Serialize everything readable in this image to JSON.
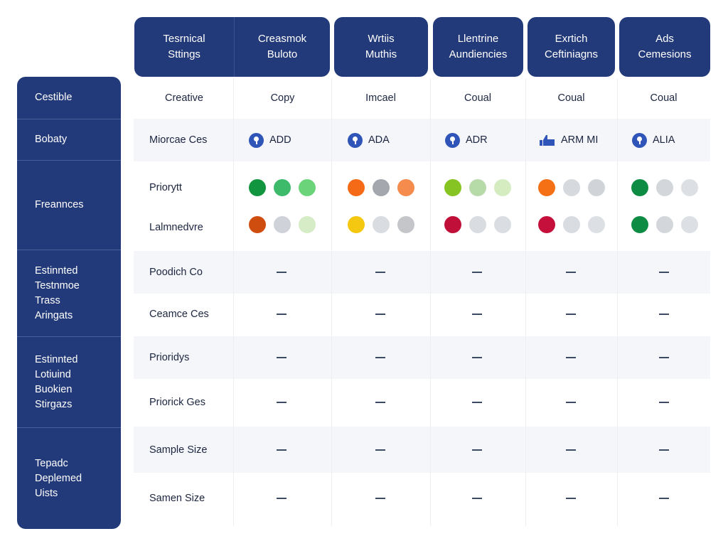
{
  "header": {
    "columns": [
      {
        "label_line1": "Tesrnical",
        "label_line2": "Sttings"
      },
      {
        "label_line1": "Creasmok",
        "label_line2": "Buloto"
      },
      {
        "label_line1": "Wrtiis",
        "label_line2": "Muthis"
      },
      {
        "label_line1": "Llentrine",
        "label_line2": "Aundiencies"
      },
      {
        "label_line1": "Exrtich",
        "label_line2": "Ceftiniagns"
      },
      {
        "label_line1": "Ads",
        "label_line2": "Cemesions"
      }
    ]
  },
  "sidebar": {
    "sections": [
      {
        "lines": [
          "Cestible"
        ]
      },
      {
        "lines": [
          "Bobaty"
        ]
      },
      {
        "lines": [
          "Freannces"
        ]
      },
      {
        "lines": [
          "Estinnted",
          "Testnmoe",
          "Trass",
          "Aringats"
        ]
      },
      {
        "lines": [
          "Estinnted",
          "Lotiuind",
          "Buokien",
          "Stirgazs"
        ]
      },
      {
        "lines": [
          "Tepadc",
          "Deplemed",
          "Uists"
        ]
      }
    ]
  },
  "subheader": {
    "label": "Creative",
    "columns": [
      "Copy",
      "Imcael",
      "Coual",
      "Coual",
      "Coual"
    ]
  },
  "badge_row": {
    "label": "Miorcae Ces",
    "badges": [
      {
        "icon": "pin-icon",
        "text": "ADD"
      },
      {
        "icon": "pin-icon",
        "text": "ADA"
      },
      {
        "icon": "pin-icon",
        "text": "ADR"
      },
      {
        "icon": "thumbs-up-icon",
        "text": "ARM MI"
      },
      {
        "icon": "pin-icon",
        "text": "ALIA"
      }
    ]
  },
  "dot_rows": [
    {
      "label": "Priorytt",
      "cells": [
        [
          "#12953f",
          "#3dbb6a",
          "#6bd47b"
        ],
        [
          "#f56a16",
          "#a4a7ad",
          "#f58c4e"
        ],
        [
          "#86c424",
          "#b7daa9",
          "#d5ecc0"
        ],
        [
          "#f56f14",
          "#d6d9de",
          "#d0d3d8"
        ],
        [
          "#0f8c44",
          "#d3d6db",
          "#dcdfe3"
        ]
      ]
    },
    {
      "label": "Lalmnedvre",
      "cells": [
        [
          "#d04d10",
          "#cfd3d9",
          "#d6ecc6"
        ],
        [
          "#f4c810",
          "#d9dde1",
          "#c4c6ca"
        ],
        [
          "#c0103a",
          "#d9dce1",
          "#dadde2"
        ],
        [
          "#c4103a",
          "#d9dce1",
          "#dcdfe3"
        ],
        [
          "#0f8c44",
          "#d3d6db",
          "#dcdfe3"
        ]
      ]
    }
  ],
  "dash_rows": [
    {
      "label": "Poodich Co",
      "values": [
        "—",
        "—",
        "—",
        "—",
        "—"
      ]
    },
    {
      "label": "Ceamce Ces",
      "values": [
        "—",
        "—",
        "—",
        "—",
        "—"
      ]
    },
    {
      "label": "Prioridys",
      "values": [
        "—",
        "—",
        "—",
        "—",
        "—"
      ]
    },
    {
      "label": "Priorick Ges",
      "values": [
        "—",
        "—",
        "—",
        "—",
        "—"
      ]
    },
    {
      "label": "Sample Size",
      "values": [
        "—",
        "—",
        "—",
        "—",
        "—"
      ]
    },
    {
      "label": "Samen Size",
      "values": [
        "—",
        "—",
        "—",
        "—",
        "—"
      ]
    }
  ],
  "colors": {
    "navy": "#233a7a",
    "row_alt": "#f4f6f9",
    "icon_blue": "#2f55b8"
  }
}
